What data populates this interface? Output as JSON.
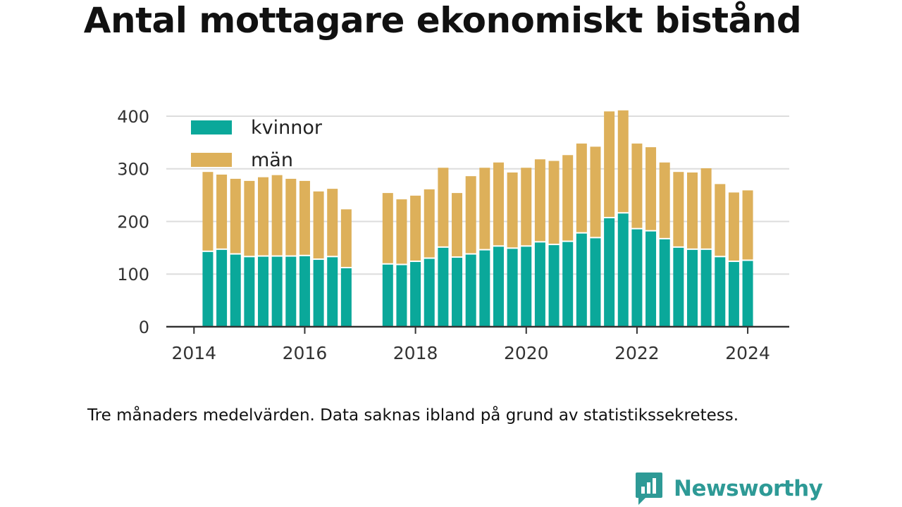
{
  "chart_data": {
    "type": "bar",
    "stacked": true,
    "title": "Antal mottagare ekonomiskt bistånd",
    "note": "Tre månaders medelvärden. Data saknas ibland på grund av statistikssekretess.",
    "ylim": [
      0,
      420
    ],
    "yticks": [
      0,
      100,
      200,
      300,
      400
    ],
    "xticks": [
      2014,
      2016,
      2018,
      2020,
      2022,
      2024
    ],
    "xlim": [
      2013.5,
      2024.75
    ],
    "grid": "horizontal",
    "legend_position": "top-left",
    "x": [
      2014.25,
      2014.5,
      2014.75,
      2015.0,
      2015.25,
      2015.5,
      2015.75,
      2016.0,
      2016.25,
      2016.5,
      2016.75,
      2017.5,
      2017.75,
      2018.0,
      2018.25,
      2018.5,
      2018.75,
      2019.0,
      2019.25,
      2019.5,
      2019.75,
      2020.0,
      2020.25,
      2020.5,
      2020.75,
      2021.0,
      2021.25,
      2021.5,
      2021.75,
      2022.0,
      2022.25,
      2022.5,
      2022.75,
      2023.0,
      2023.25,
      2023.5,
      2023.75,
      2024.0
    ],
    "series": [
      {
        "name": "kvinnor",
        "color": "#0aa89a",
        "values": [
          142,
          146,
          137,
          132,
          133,
          133,
          133,
          134,
          127,
          132,
          111,
          118,
          117,
          123,
          129,
          150,
          131,
          137,
          145,
          152,
          148,
          152,
          160,
          155,
          161,
          177,
          168,
          206,
          215,
          185,
          181,
          166,
          150,
          146,
          146,
          132,
          123,
          125
        ]
      },
      {
        "name": "män",
        "color": "#ddb05a",
        "values": [
          152,
          143,
          144,
          145,
          151,
          155,
          148,
          143,
          130,
          130,
          112,
          136,
          125,
          126,
          132,
          152,
          123,
          149,
          157,
          160,
          145,
          150,
          158,
          160,
          165,
          171,
          174,
          203,
          196,
          163,
          160,
          146,
          144,
          147,
          155,
          139,
          132,
          134
        ]
      }
    ]
  },
  "brand": {
    "name": "Newsworthy",
    "icon": "newsworthy-logo-icon",
    "color": "#2e9a96"
  }
}
